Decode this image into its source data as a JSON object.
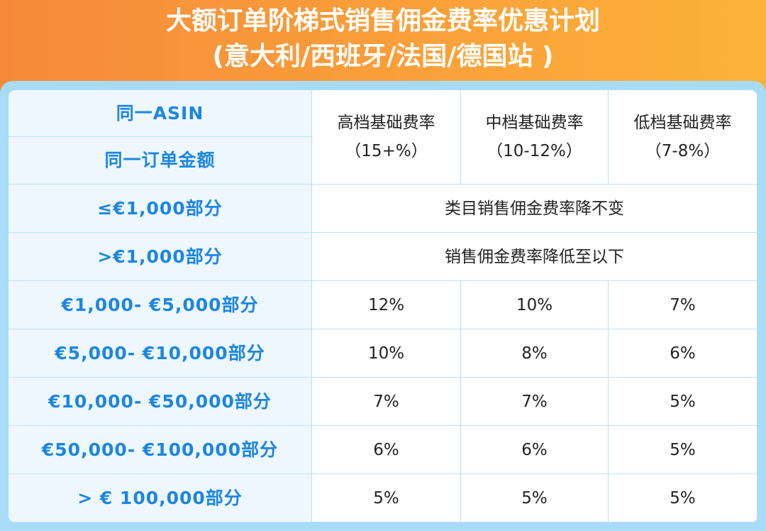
{
  "header": {
    "title": [
      "大额订单阶梯式销售佣金费率优惠计划",
      "(意大利/西班牙/法国/德国站 )"
    ]
  },
  "table": {
    "corner": [
      "同一ASIN",
      "同一订单金额"
    ],
    "columns": [
      {
        "name": "高档基础费率",
        "range": "（15+%）"
      },
      {
        "name": "中档基础费率",
        "range": "（10-12%）"
      },
      {
        "name": "低档基础费率",
        "range": "（7-8%）"
      }
    ],
    "span_rows": [
      {
        "label": "≤€1,000部分",
        "text": "类目销售佣金费率降不变"
      },
      {
        "label": ">€1,000部分",
        "text": "销售佣金费率降低至以下"
      }
    ],
    "rows": [
      {
        "label": "€1,000- €5,000部分",
        "values": [
          "12%",
          "10%",
          "7%"
        ]
      },
      {
        "label": "€5,000- €10,000部分",
        "values": [
          "10%",
          "8%",
          "6%"
        ]
      },
      {
        "label": "€10,000- €50,000部分",
        "values": [
          "7%",
          "7%",
          "5%"
        ]
      },
      {
        "label": "€50,000- €100,000部分",
        "values": [
          "6%",
          "6%",
          "5%"
        ]
      },
      {
        "label": "> € 100,000部分",
        "values": [
          "5%",
          "5%",
          "5%"
        ]
      }
    ]
  }
}
